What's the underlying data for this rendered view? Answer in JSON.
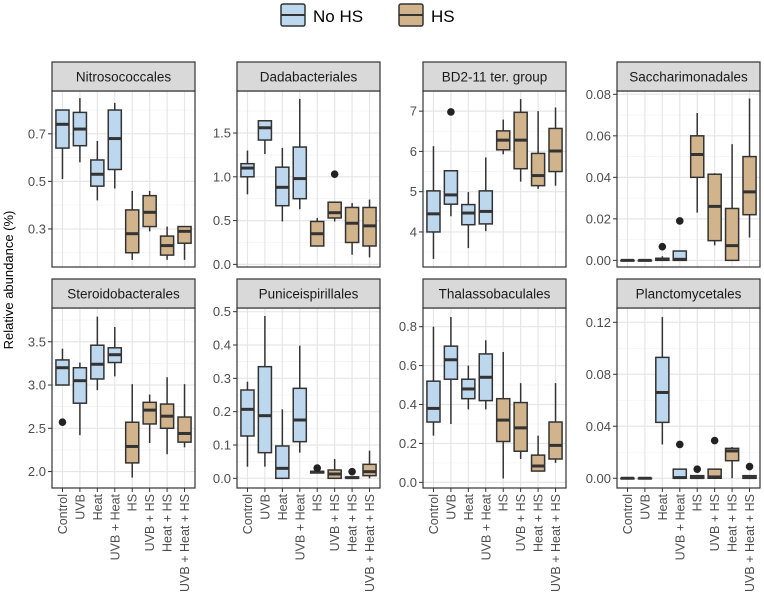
{
  "chart_data": {
    "type": "boxplot",
    "ylabel": "Relative abundance (%)",
    "xlabel": "",
    "grid": true,
    "legend_position": "top",
    "categories": [
      "Control",
      "UVB",
      "Heat",
      "UVB + Heat",
      "HS",
      "UVB + HS",
      "Heat + HS",
      "UVB + Heat + HS"
    ],
    "category_group": [
      "No HS",
      "No HS",
      "No HS",
      "No HS",
      "HS",
      "HS",
      "HS",
      "HS"
    ],
    "legend": [
      {
        "label": "No HS",
        "color": "#BDD7EE"
      },
      {
        "label": "HS",
        "color": "#D2B48C"
      }
    ],
    "panels": [
      {
        "title": "Nitrosococcales",
        "ylim": [
          0.14,
          0.88
        ],
        "ticks": [
          0.3,
          0.5,
          0.7
        ],
        "tick_labels": [
          "0.3",
          "0.5",
          "0.7"
        ],
        "boxes": [
          [
            0.51,
            0.64,
            0.74,
            0.8,
            0.8
          ],
          [
            0.58,
            0.65,
            0.72,
            0.79,
            0.85
          ],
          [
            0.42,
            0.48,
            0.53,
            0.59,
            0.67
          ],
          [
            0.47,
            0.55,
            0.68,
            0.8,
            0.83
          ],
          [
            0.17,
            0.2,
            0.28,
            0.38,
            0.46
          ],
          [
            0.29,
            0.31,
            0.37,
            0.44,
            0.46
          ],
          [
            0.17,
            0.19,
            0.23,
            0.27,
            0.31
          ],
          [
            0.17,
            0.24,
            0.29,
            0.31,
            0.31
          ]
        ],
        "outliers": []
      },
      {
        "title": "Dadabacteriales",
        "ylim": [
          -0.03,
          1.98
        ],
        "ticks": [
          0,
          0.5,
          1.0,
          1.5
        ],
        "tick_labels": [
          "0.0",
          "0.5",
          "1.0",
          "1.5"
        ],
        "boxes": [
          [
            0.8,
            1.0,
            1.1,
            1.15,
            1.3
          ],
          [
            1.26,
            1.42,
            1.56,
            1.64,
            1.64
          ],
          [
            0.49,
            0.67,
            0.88,
            1.11,
            1.33
          ],
          [
            0.63,
            0.75,
            0.98,
            1.34,
            1.89
          ],
          [
            0.21,
            0.21,
            0.35,
            0.49,
            0.53
          ],
          [
            0.49,
            0.53,
            0.59,
            0.71,
            0.71
          ],
          [
            0.11,
            0.25,
            0.47,
            0.65,
            0.7
          ],
          [
            0.08,
            0.21,
            0.44,
            0.65,
            0.74
          ]
        ],
        "outliers": [
          [
            5,
            1.03
          ]
        ]
      },
      {
        "title": "BD2-11 ter. group",
        "ylim": [
          3.13,
          7.5
        ],
        "ticks": [
          4,
          5,
          6,
          7
        ],
        "tick_labels": [
          "4",
          "5",
          "6",
          "7"
        ],
        "boxes": [
          [
            3.33,
            4.0,
            4.45,
            5.02,
            6.13
          ],
          [
            4.39,
            4.69,
            4.92,
            5.52,
            5.52
          ],
          [
            3.6,
            4.18,
            4.47,
            4.68,
            4.99
          ],
          [
            4.02,
            4.2,
            4.51,
            5.02,
            5.85
          ],
          [
            5.93,
            6.04,
            6.28,
            6.51,
            6.79
          ],
          [
            5.25,
            5.57,
            6.28,
            6.97,
            7.3
          ],
          [
            5.07,
            5.15,
            5.4,
            5.95,
            7.0
          ],
          [
            5.15,
            5.5,
            6.01,
            6.57,
            7.09
          ]
        ],
        "outliers": [
          [
            1,
            6.98
          ]
        ]
      },
      {
        "title": "Saccharimonadales",
        "ylim": [
          -0.0032,
          0.0816
        ],
        "ticks": [
          0,
          0.02,
          0.04,
          0.06,
          0.08
        ],
        "tick_labels": [
          "0.00",
          "0.02",
          "0.04",
          "0.06",
          "0.08"
        ],
        "boxes": [
          [
            0,
            0,
            0,
            0,
            0
          ],
          [
            0,
            0,
            0,
            0,
            0
          ],
          [
            0,
            0,
            0.0005,
            0.001,
            0.002
          ],
          [
            0,
            0,
            0.0005,
            0.0045,
            0.0045
          ],
          [
            0.023,
            0.04,
            0.051,
            0.06,
            0.071
          ],
          [
            0.0072,
            0.0095,
            0.026,
            0.0415,
            0.042
          ],
          [
            0,
            0,
            0.0071,
            0.025,
            0.056
          ],
          [
            0.011,
            0.022,
            0.033,
            0.05,
            0.078
          ]
        ],
        "outliers": [
          [
            2,
            0.0066
          ],
          [
            3,
            0.019
          ]
        ]
      },
      {
        "title": "Steroidobacterales",
        "ylim": [
          1.81,
          3.89
        ],
        "ticks": [
          2.0,
          2.5,
          3.0,
          3.5
        ],
        "tick_labels": [
          "2.0",
          "2.5",
          "3.0",
          "3.5"
        ],
        "boxes": [
          [
            3.0,
            3.0,
            3.2,
            3.29,
            3.42
          ],
          [
            2.42,
            2.79,
            3.05,
            3.2,
            3.26
          ],
          [
            2.94,
            3.07,
            3.24,
            3.46,
            3.79
          ],
          [
            3.1,
            3.26,
            3.35,
            3.43,
            3.67
          ],
          [
            1.93,
            2.1,
            2.29,
            2.57,
            3.01
          ],
          [
            2.33,
            2.55,
            2.71,
            2.8,
            2.89
          ],
          [
            2.2,
            2.5,
            2.64,
            2.78,
            3.09
          ],
          [
            2.28,
            2.34,
            2.44,
            2.63,
            3.01
          ]
        ],
        "outliers": [
          [
            0,
            2.57
          ]
        ]
      },
      {
        "title": "Puniceispirillales",
        "ylim": [
          -0.029,
          0.511
        ],
        "ticks": [
          0,
          0.1,
          0.2,
          0.3,
          0.4,
          0.5
        ],
        "tick_labels": [
          "0.0",
          "0.1",
          "0.2",
          "0.3",
          "0.4",
          "0.5"
        ],
        "boxes": [
          [
            0.035,
            0.127,
            0.207,
            0.265,
            0.29
          ],
          [
            0.035,
            0.077,
            0.188,
            0.335,
            0.487
          ],
          [
            0,
            0,
            0.03,
            0.097,
            0.207
          ],
          [
            0.077,
            0.11,
            0.175,
            0.27,
            0.398
          ],
          [
            0.015,
            0.016,
            0.019,
            0.021,
            0.023
          ],
          [
            0,
            0,
            0.013,
            0.025,
            0.058
          ],
          [
            0,
            0.001,
            0.002,
            0.004,
            0.006
          ],
          [
            0,
            0.008,
            0.02,
            0.042,
            0.083
          ]
        ],
        "outliers": [
          [
            4,
            0.031
          ],
          [
            6,
            0.02
          ]
        ]
      },
      {
        "title": "Thalassobaculales",
        "ylim": [
          -0.029,
          0.896
        ],
        "ticks": [
          0,
          0.2,
          0.4,
          0.6,
          0.8
        ],
        "tick_labels": [
          "0.0",
          "0.2",
          "0.4",
          "0.6",
          "0.8"
        ],
        "boxes": [
          [
            0.24,
            0.31,
            0.38,
            0.52,
            0.8
          ],
          [
            0.3,
            0.53,
            0.63,
            0.7,
            0.85
          ],
          [
            0.375,
            0.43,
            0.48,
            0.53,
            0.6
          ],
          [
            0.375,
            0.42,
            0.54,
            0.66,
            0.73
          ],
          [
            0.02,
            0.21,
            0.32,
            0.43,
            0.67
          ],
          [
            0.12,
            0.16,
            0.28,
            0.41,
            0.51
          ],
          [
            0.058,
            0.058,
            0.084,
            0.14,
            0.24
          ],
          [
            0.1,
            0.12,
            0.19,
            0.31,
            0.51
          ]
        ],
        "outliers": []
      },
      {
        "title": "Planctomycetales",
        "ylim": [
          -0.0075,
          0.131
        ],
        "ticks": [
          0,
          0.04,
          0.08,
          0.12
        ],
        "tick_labels": [
          "0.00",
          "0.04",
          "0.08",
          "0.12"
        ],
        "boxes": [
          [
            0,
            0,
            0,
            0,
            0
          ],
          [
            0,
            0,
            0,
            0,
            0
          ],
          [
            0.026,
            0.043,
            0.066,
            0.093,
            0.124
          ],
          [
            0,
            0,
            0.0005,
            0.007,
            0.007
          ],
          [
            0,
            0,
            0.0005,
            0.002,
            0.002
          ],
          [
            0,
            0,
            0.001,
            0.007,
            0.007
          ],
          [
            0,
            0.0135,
            0.021,
            0.023,
            0.024
          ],
          [
            0,
            0,
            0.0005,
            0.002,
            0.002
          ]
        ],
        "outliers": [
          [
            3,
            0.026
          ],
          [
            4,
            0.007
          ],
          [
            5,
            0.029
          ],
          [
            7,
            0.009
          ]
        ]
      }
    ]
  }
}
